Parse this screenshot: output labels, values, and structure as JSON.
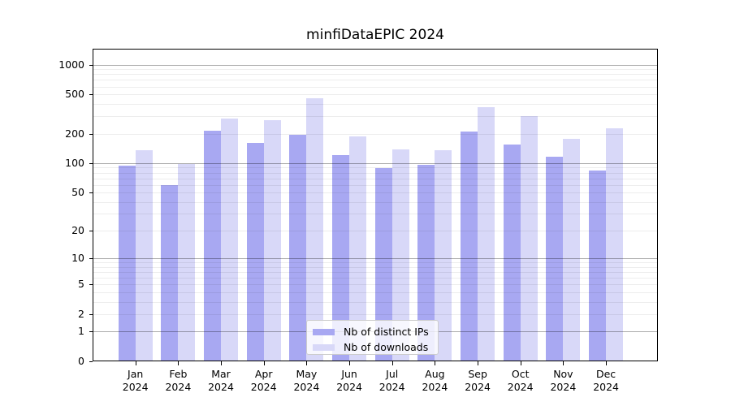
{
  "title": "minfiDataEPIC 2024",
  "chart_data": {
    "type": "bar",
    "title": "minfiDataEPIC 2024",
    "categories": [
      "Jan 2024",
      "Feb 2024",
      "Mar 2024",
      "Apr 2024",
      "May 2024",
      "Jun 2024",
      "Jul 2024",
      "Aug 2024",
      "Sep 2024",
      "Oct 2024",
      "Nov 2024",
      "Dec 2024"
    ],
    "series": [
      {
        "name": "Nb of distinct IPs",
        "color": "#a8a8f2",
        "values": [
          95,
          60,
          212,
          161,
          196,
          121,
          89,
          96,
          209,
          156,
          116,
          84
        ]
      },
      {
        "name": "Nb of downloads",
        "color": "#d8d8f8",
        "values": [
          136,
          98,
          282,
          273,
          453,
          188,
          138,
          135,
          368,
          302,
          176,
          225
        ]
      }
    ],
    "xlabel": "",
    "ylabel": "",
    "yscale": "log1p",
    "ylim": [
      0,
      1447
    ],
    "yticks": [
      1000,
      500,
      200,
      100,
      50,
      20,
      10,
      5,
      2,
      1,
      0
    ],
    "grid": true,
    "legend_position": "bottom-center",
    "colors": {
      "bar_dark": "#a8a8f2",
      "bar_light": "#d8d8f8",
      "major_grid": "rgba(0,0,0,0.33)",
      "minor_grid": "rgba(0,0,0,0.07)",
      "spine": "#000000",
      "legend_border": "#cccccc"
    }
  }
}
